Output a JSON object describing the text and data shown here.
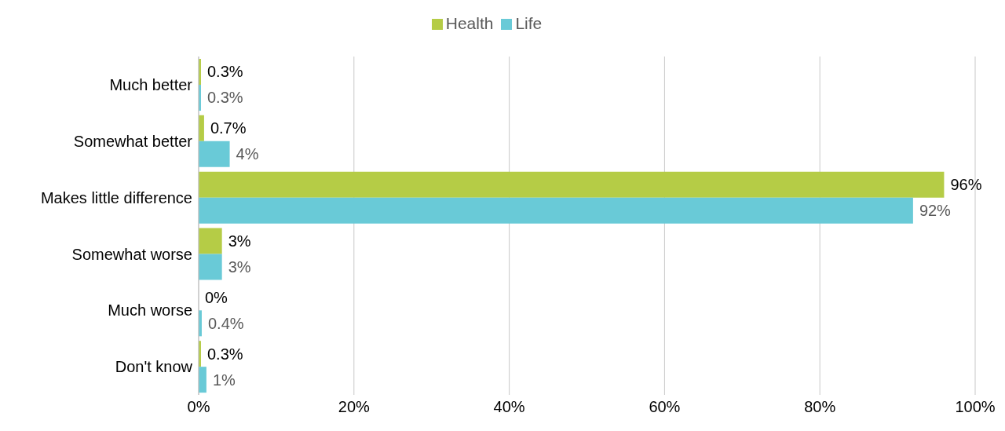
{
  "chart_data": {
    "type": "bar",
    "orientation": "horizontal",
    "categories": [
      "Much better",
      "Somewhat better",
      "Makes little difference",
      "Somewhat worse",
      "Much worse",
      "Don't know"
    ],
    "series": [
      {
        "name": "Health",
        "color": "#b5cc46",
        "values": [
          0.3,
          0.7,
          96,
          3,
          0,
          0.3
        ],
        "value_labels": [
          "0.3%",
          "0.7%",
          "96%",
          "3%",
          "0%",
          "0.3%"
        ]
      },
      {
        "name": "Life",
        "color": "#69cad7",
        "values": [
          0.3,
          4,
          92,
          3,
          0.4,
          1
        ],
        "value_labels": [
          "0.3%",
          "4%",
          "92%",
          "3%",
          "0.4%",
          "1%"
        ]
      }
    ],
    "xlim": [
      0,
      100
    ],
    "xticks": [
      {
        "value": 0,
        "label": "0%"
      },
      {
        "value": 20,
        "label": "20%"
      },
      {
        "value": 40,
        "label": "40%"
      },
      {
        "value": 60,
        "label": "60%"
      },
      {
        "value": 80,
        "label": "80%"
      },
      {
        "value": 100,
        "label": "100%"
      }
    ],
    "grid": "x",
    "legend": "top"
  }
}
